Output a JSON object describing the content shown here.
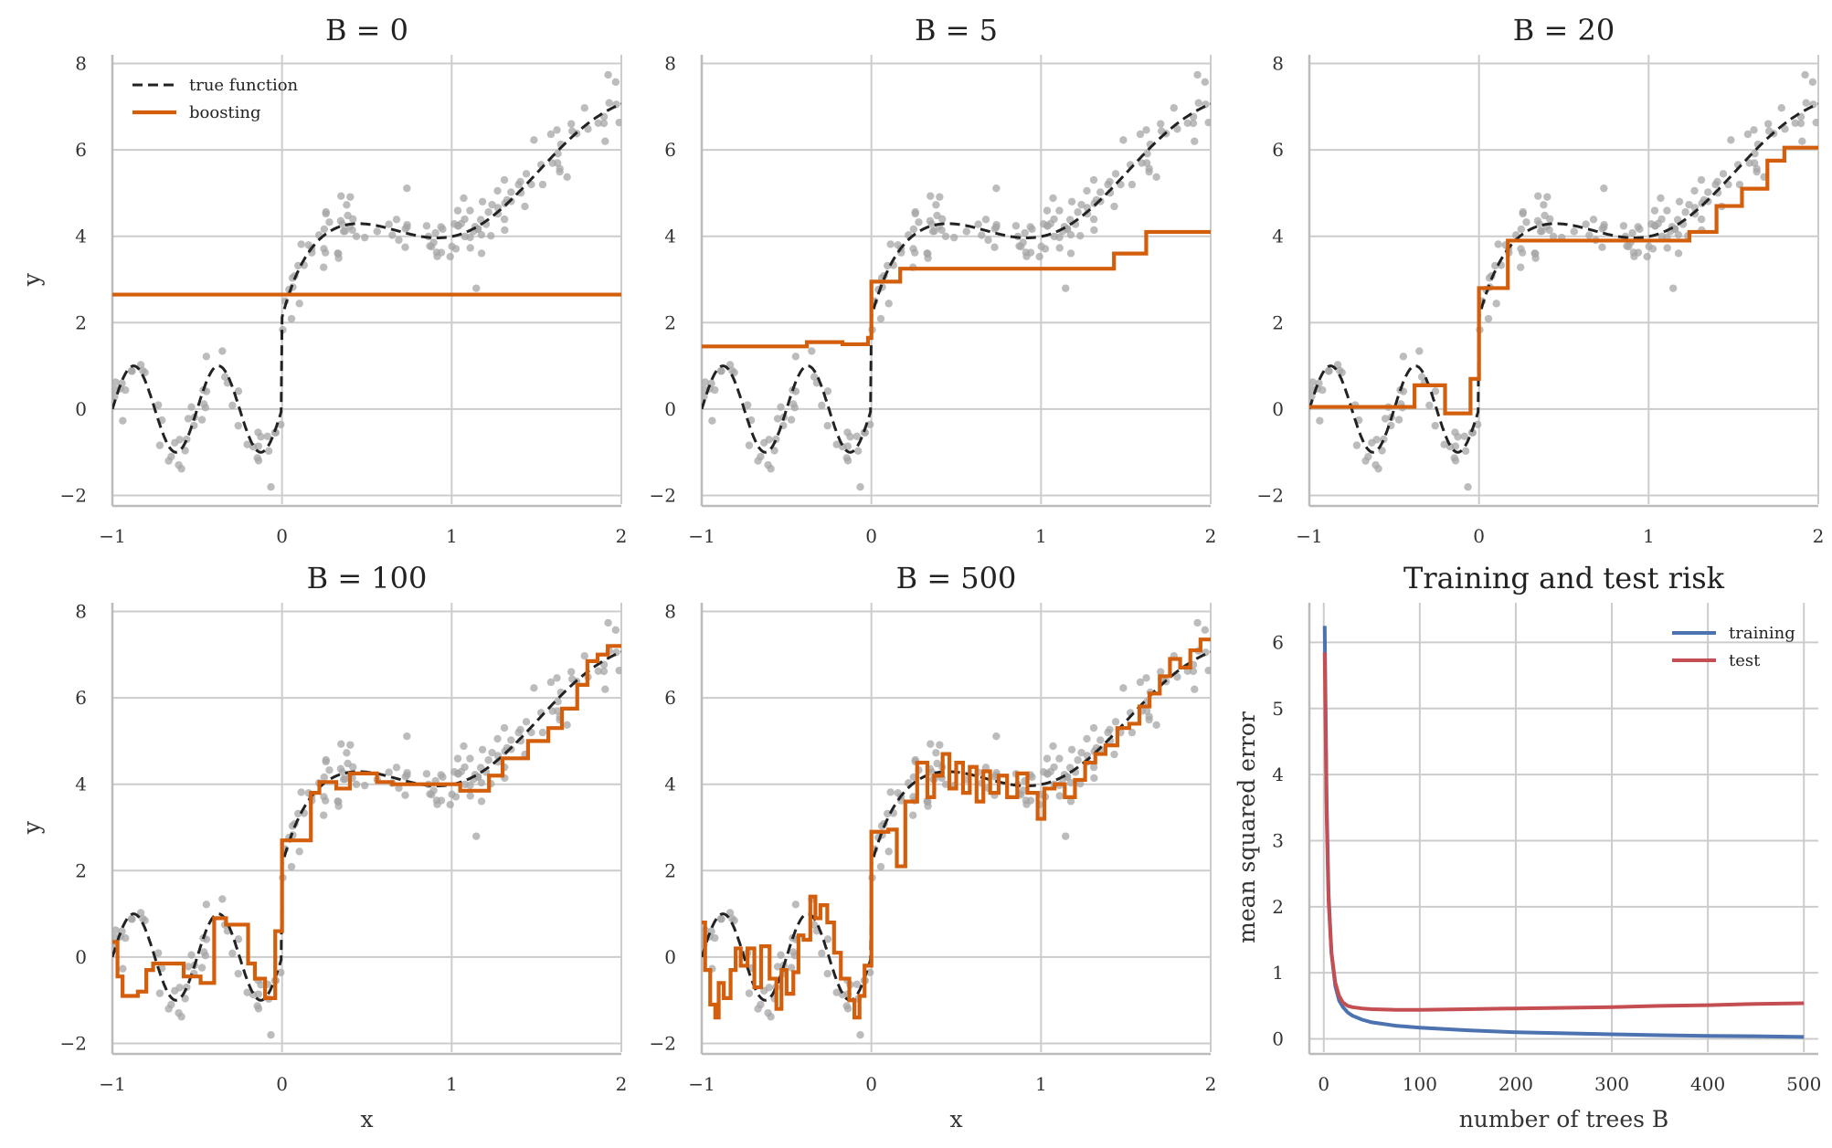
{
  "colors": {
    "boosting": "#d35f0c",
    "true_function": "#222222",
    "points": "#a6a6a6",
    "training": "#4c72b0",
    "test": "#c44e52",
    "grid": "#cccccc"
  },
  "chart_data": [
    {
      "type": "line",
      "title": "B = 0",
      "xlabel": "",
      "ylabel": "y",
      "xlim": [
        -1,
        2
      ],
      "ylim": [
        -2.2,
        8.2
      ],
      "xticks": [
        -1,
        0,
        1,
        2
      ],
      "yticks": [
        -2,
        0,
        2,
        4,
        6,
        8
      ],
      "legend": {
        "position": "top-left",
        "entries": [
          "true function",
          "boosting"
        ]
      },
      "boosting_steps": [
        [
          -1,
          2.65
        ],
        [
          2,
          2.65
        ]
      ]
    },
    {
      "type": "line",
      "title": "B = 5",
      "xlabel": "",
      "ylabel": "",
      "xlim": [
        -1,
        2
      ],
      "ylim": [
        -2.2,
        8.2
      ],
      "xticks": [
        -1,
        0,
        1,
        2
      ],
      "yticks": [
        -2,
        0,
        2,
        4,
        6,
        8
      ],
      "boosting_steps": [
        [
          -1,
          1.45
        ],
        [
          -0.38,
          1.55
        ],
        [
          -0.17,
          1.5
        ],
        [
          -0.02,
          1.65
        ],
        [
          0,
          2.95
        ],
        [
          0.17,
          3.25
        ],
        [
          1.43,
          3.6
        ],
        [
          1.62,
          4.1
        ],
        [
          2,
          4.1
        ]
      ]
    },
    {
      "type": "line",
      "title": "B = 20",
      "xlabel": "",
      "ylabel": "",
      "xlim": [
        -1,
        2
      ],
      "ylim": [
        -2.2,
        8.2
      ],
      "xticks": [
        -1,
        0,
        1,
        2
      ],
      "yticks": [
        -2,
        0,
        2,
        4,
        6,
        8
      ],
      "boosting_steps": [
        [
          -1,
          0.05
        ],
        [
          -0.38,
          0.55
        ],
        [
          -0.2,
          -0.1
        ],
        [
          -0.05,
          0.7
        ],
        [
          0,
          2.8
        ],
        [
          0.17,
          3.9
        ],
        [
          1.24,
          4.1
        ],
        [
          1.4,
          4.7
        ],
        [
          1.55,
          5.1
        ],
        [
          1.7,
          5.75
        ],
        [
          1.8,
          6.05
        ],
        [
          2,
          6.05
        ]
      ]
    },
    {
      "type": "line",
      "title": "B = 100",
      "xlabel": "x",
      "ylabel": "y",
      "xlim": [
        -1,
        2
      ],
      "ylim": [
        -2.2,
        8.2
      ],
      "xticks": [
        -1,
        0,
        1,
        2
      ],
      "yticks": [
        -2,
        0,
        2,
        4,
        6,
        8
      ],
      "boosting_steps": [
        [
          -1,
          0.35
        ],
        [
          -0.97,
          -0.45
        ],
        [
          -0.94,
          -0.9
        ],
        [
          -0.85,
          -0.8
        ],
        [
          -0.8,
          -0.3
        ],
        [
          -0.76,
          -0.15
        ],
        [
          -0.58,
          -0.45
        ],
        [
          -0.48,
          -0.6
        ],
        [
          -0.4,
          0.9
        ],
        [
          -0.33,
          0.75
        ],
        [
          -0.2,
          -0.15
        ],
        [
          -0.16,
          -0.5
        ],
        [
          -0.1,
          -0.95
        ],
        [
          -0.04,
          0.6
        ],
        [
          0,
          2.7
        ],
        [
          0.17,
          3.8
        ],
        [
          0.22,
          4.05
        ],
        [
          0.32,
          3.9
        ],
        [
          0.4,
          4.25
        ],
        [
          0.56,
          4.05
        ],
        [
          0.65,
          4.0
        ],
        [
          1.05,
          3.85
        ],
        [
          1.22,
          4.2
        ],
        [
          1.3,
          4.6
        ],
        [
          1.45,
          5.0
        ],
        [
          1.57,
          5.3
        ],
        [
          1.65,
          5.75
        ],
        [
          1.74,
          6.3
        ],
        [
          1.8,
          6.85
        ],
        [
          1.86,
          7.0
        ],
        [
          1.92,
          7.2
        ],
        [
          2,
          7.2
        ]
      ]
    },
    {
      "type": "line",
      "title": "B = 500",
      "xlabel": "x",
      "ylabel": "",
      "xlim": [
        -1,
        2
      ],
      "ylim": [
        -2.2,
        8.2
      ],
      "xticks": [
        -1,
        0,
        1,
        2
      ],
      "yticks": [
        -2,
        0,
        2,
        4,
        6,
        8
      ],
      "boosting_steps": [
        [
          -1,
          0.8
        ],
        [
          -0.98,
          -0.3
        ],
        [
          -0.95,
          -1.1
        ],
        [
          -0.92,
          -1.4
        ],
        [
          -0.9,
          -0.6
        ],
        [
          -0.87,
          -0.95
        ],
        [
          -0.83,
          -0.3
        ],
        [
          -0.8,
          0.2
        ],
        [
          -0.77,
          -0.2
        ],
        [
          -0.73,
          0.2
        ],
        [
          -0.69,
          -0.7
        ],
        [
          -0.65,
          0.25
        ],
        [
          -0.6,
          -0.5
        ],
        [
          -0.56,
          -1.2
        ],
        [
          -0.53,
          -0.3
        ],
        [
          -0.5,
          -0.85
        ],
        [
          -0.46,
          -0.35
        ],
        [
          -0.43,
          0.5
        ],
        [
          -0.4,
          0.4
        ],
        [
          -0.36,
          1.4
        ],
        [
          -0.33,
          0.9
        ],
        [
          -0.3,
          1.2
        ],
        [
          -0.26,
          0.8
        ],
        [
          -0.22,
          0.1
        ],
        [
          -0.18,
          -0.5
        ],
        [
          -0.13,
          -1.0
        ],
        [
          -0.1,
          -1.4
        ],
        [
          -0.07,
          -0.9
        ],
        [
          -0.04,
          -0.2
        ],
        [
          0,
          2.9
        ],
        [
          0.1,
          2.95
        ],
        [
          0.15,
          2.1
        ],
        [
          0.2,
          3.6
        ],
        [
          0.27,
          4.5
        ],
        [
          0.33,
          3.7
        ],
        [
          0.37,
          4.2
        ],
        [
          0.42,
          4.7
        ],
        [
          0.46,
          3.9
        ],
        [
          0.5,
          4.5
        ],
        [
          0.54,
          3.8
        ],
        [
          0.58,
          4.4
        ],
        [
          0.62,
          3.6
        ],
        [
          0.66,
          4.3
        ],
        [
          0.7,
          3.8
        ],
        [
          0.75,
          4.2
        ],
        [
          0.8,
          3.7
        ],
        [
          0.86,
          4.25
        ],
        [
          0.92,
          3.8
        ],
        [
          0.98,
          3.2
        ],
        [
          1.02,
          3.9
        ],
        [
          1.08,
          4.0
        ],
        [
          1.14,
          3.7
        ],
        [
          1.2,
          4.1
        ],
        [
          1.26,
          4.5
        ],
        [
          1.32,
          4.7
        ],
        [
          1.38,
          4.9
        ],
        [
          1.45,
          5.3
        ],
        [
          1.52,
          5.4
        ],
        [
          1.58,
          5.8
        ],
        [
          1.64,
          6.1
        ],
        [
          1.7,
          6.5
        ],
        [
          1.76,
          6.9
        ],
        [
          1.82,
          6.7
        ],
        [
          1.88,
          7.1
        ],
        [
          1.94,
          7.35
        ],
        [
          2,
          7.35
        ]
      ]
    },
    {
      "type": "line",
      "title": "Training and test risk",
      "xlabel": "number of trees B",
      "ylabel": "mean squared error",
      "xlim": [
        -15,
        515
      ],
      "ylim": [
        -0.2,
        6.6
      ],
      "xticks": [
        0,
        100,
        200,
        300,
        400,
        500
      ],
      "yticks": [
        0,
        1,
        2,
        3,
        4,
        5,
        6
      ],
      "legend": {
        "position": "top-right",
        "entries": [
          "training",
          "test"
        ]
      },
      "x": [
        1,
        3,
        5,
        8,
        12,
        16,
        20,
        25,
        30,
        40,
        50,
        75,
        100,
        150,
        200,
        250,
        300,
        350,
        400,
        450,
        500
      ],
      "series": [
        {
          "name": "training",
          "values": [
            6.25,
            3.6,
            2.2,
            1.3,
            0.8,
            0.58,
            0.48,
            0.4,
            0.35,
            0.29,
            0.25,
            0.2,
            0.17,
            0.13,
            0.1,
            0.085,
            0.07,
            0.055,
            0.045,
            0.04,
            0.03
          ]
        },
        {
          "name": "test",
          "values": [
            5.85,
            3.4,
            2.1,
            1.3,
            0.85,
            0.65,
            0.55,
            0.5,
            0.48,
            0.46,
            0.45,
            0.44,
            0.44,
            0.45,
            0.46,
            0.47,
            0.48,
            0.5,
            0.51,
            0.53,
            0.54
          ]
        }
      ]
    }
  ]
}
